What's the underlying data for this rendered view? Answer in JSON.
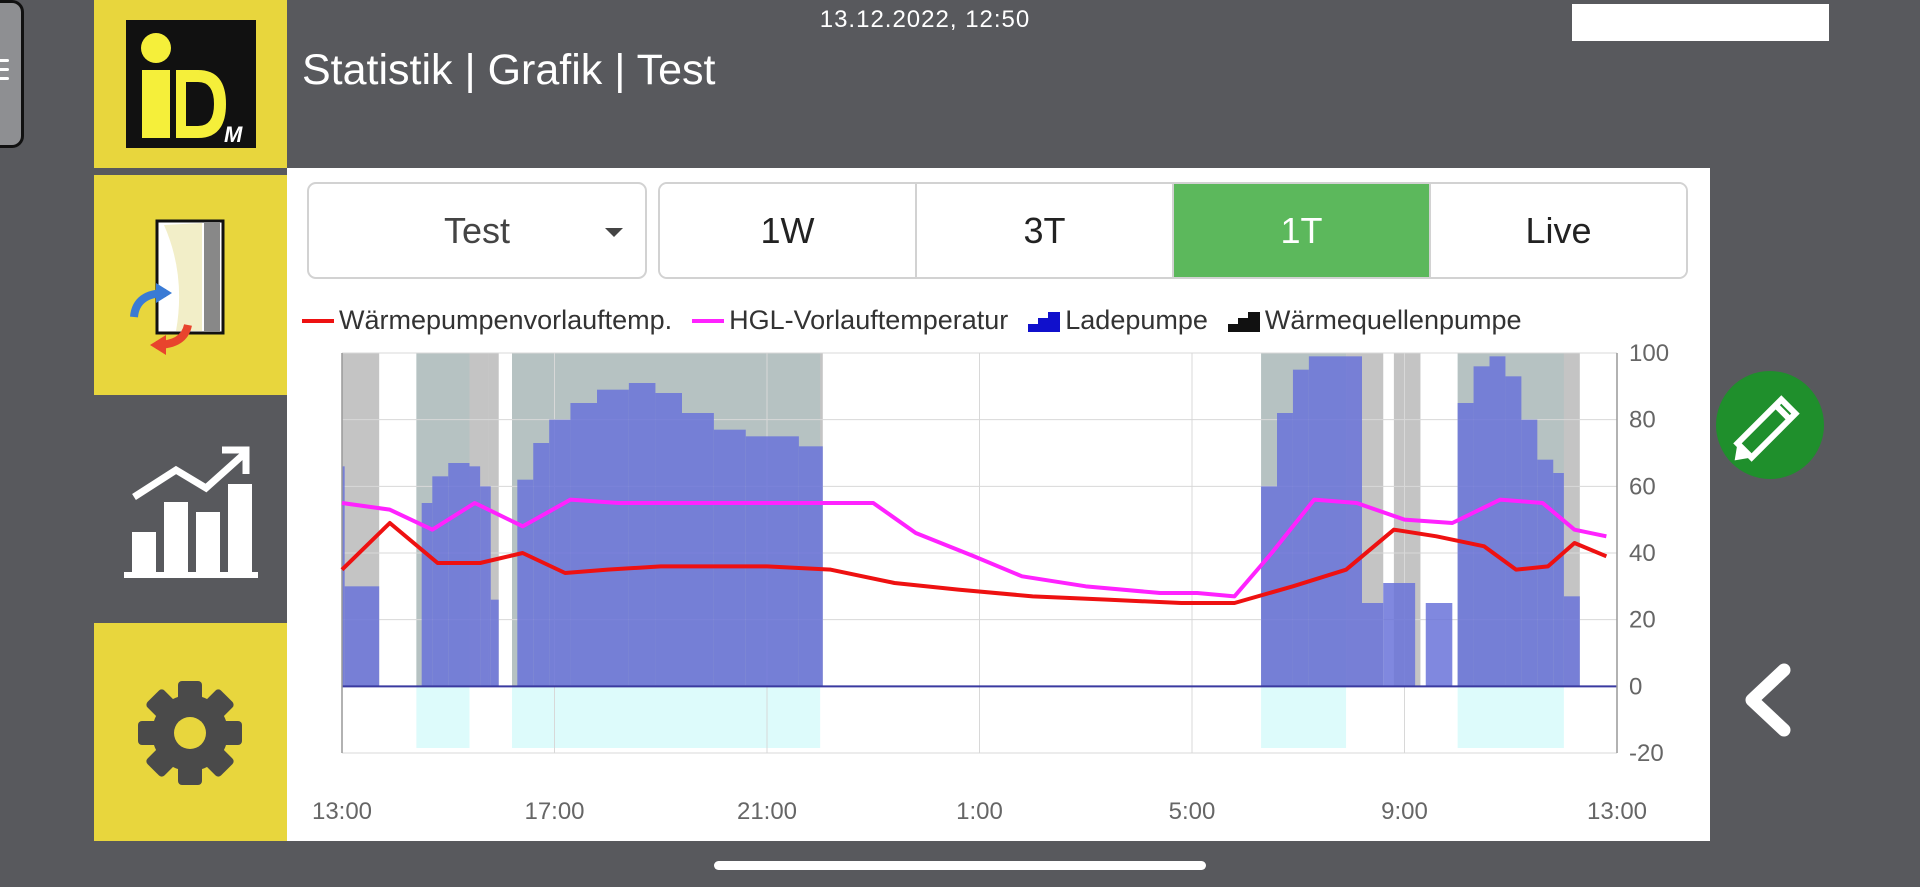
{
  "header": {
    "datetime": "13.12.2022, 12:50",
    "title": "Statistik | Grafik | Test"
  },
  "sidebar": {
    "logo_letters": "iDM",
    "items": [
      {
        "icon": "heat-pump-transfer-icon",
        "label": ""
      },
      {
        "icon": "statistics-chart-icon",
        "label": "",
        "active": true
      },
      {
        "icon": "gear-icon",
        "label": ""
      }
    ]
  },
  "controls": {
    "dropdown_value": "Test",
    "ranges": [
      "1W",
      "3T",
      "1T",
      "Live"
    ],
    "active_range": "1T"
  },
  "colors": {
    "accent_yellow": "#e8d63d",
    "active_green": "#5cb85c",
    "fab_green": "#1f8f2c",
    "background": "#58595d"
  },
  "chart_data": {
    "type": "line",
    "legend": [
      {
        "name": "Wärmepumpenvorlauftemp.",
        "color": "#ee1111",
        "kind": "line"
      },
      {
        "name": "HGL-Vorlauftemperatur",
        "color": "#ff22ff",
        "kind": "line"
      },
      {
        "name": "Ladepumpe",
        "color": "#1010cc",
        "kind": "step"
      },
      {
        "name": "Wärmequellenpumpe",
        "color": "#111111",
        "kind": "step"
      }
    ],
    "x_unit": "hours since 13:00",
    "xlim": [
      0,
      24
    ],
    "ylim": [
      -20,
      100
    ],
    "y_ticks": [
      100,
      80,
      60,
      40,
      20,
      0,
      -20
    ],
    "x_ticks": [
      {
        "x": 0,
        "label": "13:00"
      },
      {
        "x": 4,
        "label": "17:00"
      },
      {
        "x": 8,
        "label": "21:00"
      },
      {
        "x": 12,
        "label": "1:00"
      },
      {
        "x": 16,
        "label": "5:00"
      },
      {
        "x": 20,
        "label": "9:00"
      },
      {
        "x": 24,
        "label": "13:00"
      }
    ],
    "series": [
      {
        "name": "Wärmepumpenvorlauftemp.",
        "color": "#ee1111",
        "x": [
          0,
          0.9,
          1.8,
          2.6,
          3.4,
          4.2,
          5,
          6,
          7,
          8,
          9.2,
          10.4,
          11.6,
          13,
          14.4,
          15.8,
          16.8,
          17.9,
          18.9,
          19.8,
          20.6,
          21.5,
          22.1,
          22.7,
          23.2,
          23.8
        ],
        "y": [
          35,
          49,
          37,
          37,
          40,
          34,
          35,
          36,
          36,
          36,
          35,
          31,
          29,
          27,
          26,
          25,
          25,
          30,
          35,
          47,
          45,
          42,
          35,
          36,
          43,
          39
        ]
      },
      {
        "name": "HGL-Vorlauftemperatur",
        "color": "#ff22ff",
        "x": [
          0,
          0.9,
          1.7,
          2.5,
          3.4,
          4.3,
          5.2,
          6.5,
          8.1,
          9.2,
          10.0,
          10.8,
          11.9,
          12.8,
          14.0,
          15.4,
          16.1,
          16.8,
          17.5,
          18.3,
          19.1,
          20.0,
          20.9,
          21.8,
          22.6,
          23.2,
          23.8
        ],
        "y": [
          55,
          53,
          47,
          55,
          48,
          56,
          55,
          55,
          55,
          55,
          55,
          46,
          39,
          33,
          30,
          28,
          28,
          27,
          40,
          56,
          55,
          50,
          49,
          56,
          55,
          47,
          45
        ]
      }
    ],
    "step_bands": [
      {
        "series": "Ladepumpe",
        "from": 0,
        "to": 0.05,
        "value": 66
      },
      {
        "series": "Ladepumpe",
        "from": 0.05,
        "to": 0.7,
        "value": 30
      },
      {
        "series": "Ladepumpe",
        "from": 1.5,
        "to": 1.7,
        "value": 55
      },
      {
        "series": "Ladepumpe",
        "from": 1.7,
        "to": 2.0,
        "value": 63
      },
      {
        "series": "Ladepumpe",
        "from": 2.0,
        "to": 2.4,
        "value": 67
      },
      {
        "series": "Ladepumpe",
        "from": 2.4,
        "to": 2.6,
        "value": 66
      },
      {
        "series": "Ladepumpe",
        "from": 2.6,
        "to": 2.8,
        "value": 60
      },
      {
        "series": "Ladepumpe",
        "from": 2.8,
        "to": 2.95,
        "value": 26
      },
      {
        "series": "Ladepumpe",
        "from": 3.3,
        "to": 3.6,
        "value": 62
      },
      {
        "series": "Ladepumpe",
        "from": 3.6,
        "to": 3.9,
        "value": 73
      },
      {
        "series": "Ladepumpe",
        "from": 3.9,
        "to": 4.3,
        "value": 80
      },
      {
        "series": "Ladepumpe",
        "from": 4.3,
        "to": 4.8,
        "value": 85
      },
      {
        "series": "Ladepumpe",
        "from": 4.8,
        "to": 5.4,
        "value": 89
      },
      {
        "series": "Ladepumpe",
        "from": 5.4,
        "to": 5.9,
        "value": 91
      },
      {
        "series": "Ladepumpe",
        "from": 5.9,
        "to": 6.4,
        "value": 88
      },
      {
        "series": "Ladepumpe",
        "from": 6.4,
        "to": 7.0,
        "value": 82
      },
      {
        "series": "Ladepumpe",
        "from": 7.0,
        "to": 7.6,
        "value": 77
      },
      {
        "series": "Ladepumpe",
        "from": 7.6,
        "to": 8.6,
        "value": 75
      },
      {
        "series": "Ladepumpe",
        "from": 8.6,
        "to": 9.05,
        "value": 72
      },
      {
        "series": "Ladepumpe",
        "from": 17.3,
        "to": 17.6,
        "value": 60
      },
      {
        "series": "Ladepumpe",
        "from": 17.6,
        "to": 17.9,
        "value": 82
      },
      {
        "series": "Ladepumpe",
        "from": 17.9,
        "to": 18.2,
        "value": 95
      },
      {
        "series": "Ladepumpe",
        "from": 18.2,
        "to": 19.2,
        "value": 99
      },
      {
        "series": "Ladepumpe",
        "from": 19.2,
        "to": 19.6,
        "value": 25
      },
      {
        "series": "Ladepumpe",
        "from": 19.6,
        "to": 20.2,
        "value": 31
      },
      {
        "series": "Ladepumpe",
        "from": 20.4,
        "to": 20.9,
        "value": 25
      },
      {
        "series": "Ladepumpe",
        "from": 21.0,
        "to": 21.3,
        "value": 85
      },
      {
        "series": "Ladepumpe",
        "from": 21.3,
        "to": 21.6,
        "value": 96
      },
      {
        "series": "Ladepumpe",
        "from": 21.6,
        "to": 21.9,
        "value": 99
      },
      {
        "series": "Ladepumpe",
        "from": 21.9,
        "to": 22.2,
        "value": 93
      },
      {
        "series": "Ladepumpe",
        "from": 22.2,
        "to": 22.5,
        "value": 80
      },
      {
        "series": "Ladepumpe",
        "from": 22.5,
        "to": 22.8,
        "value": 68
      },
      {
        "series": "Ladepumpe",
        "from": 22.8,
        "to": 23.0,
        "value": 64
      },
      {
        "series": "Ladepumpe",
        "from": 23.0,
        "to": 23.3,
        "value": 27
      }
    ],
    "gray_blocks": [
      {
        "from": 0,
        "to": 0.7
      },
      {
        "from": 1.4,
        "to": 2.75
      },
      {
        "from": 2.75,
        "to": 2.95
      },
      {
        "from": 3.2,
        "to": 9.05
      },
      {
        "from": 17.3,
        "to": 18.9
      },
      {
        "from": 18.9,
        "to": 19.6
      },
      {
        "from": 19.8,
        "to": 20.3
      },
      {
        "from": 21.0,
        "to": 23.3
      }
    ],
    "cyan_blocks": [
      {
        "from": 1.4,
        "to": 2.4
      },
      {
        "from": 3.2,
        "to": 9.0
      },
      {
        "from": 17.3,
        "to": 18.9
      },
      {
        "from": 21.0,
        "to": 23.0
      }
    ]
  }
}
